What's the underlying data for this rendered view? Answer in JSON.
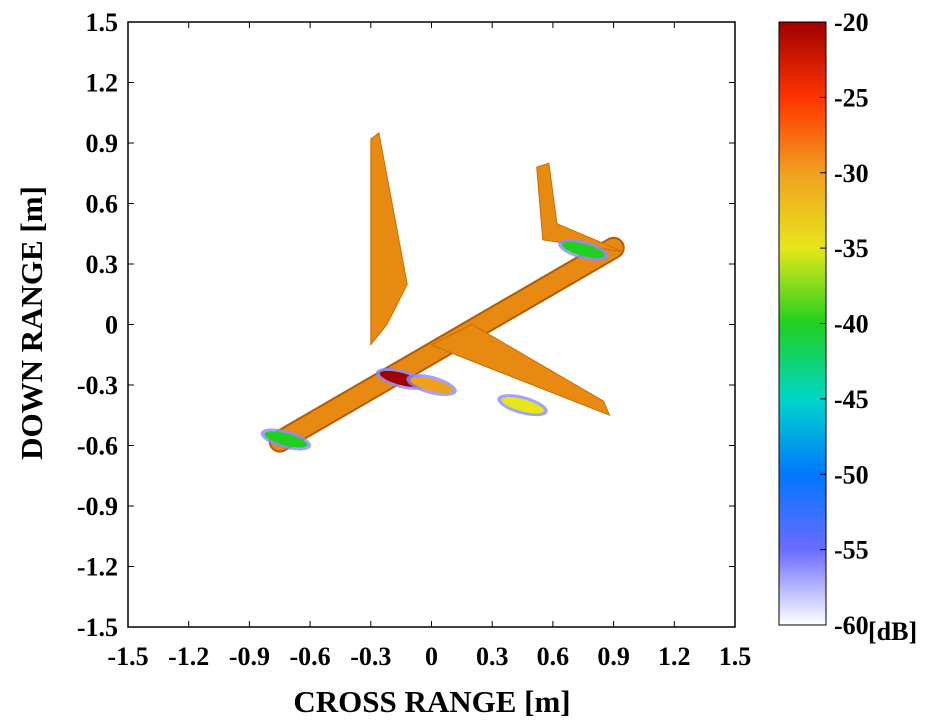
{
  "chart_data": {
    "type": "heatmap",
    "title": "",
    "xlabel": "CROSS RANGE [m]",
    "ylabel": "DOWN RANGE [m]",
    "xlim": [
      -1.5,
      1.5
    ],
    "ylim": [
      -1.5,
      1.5
    ],
    "xticks": [
      "-1.5",
      "-1.2",
      "-0.9",
      "-0.6",
      "-0.3",
      "0",
      "0.3",
      "0.6",
      "0.9",
      "1.2",
      "1.5"
    ],
    "yticks": [
      "1.5",
      "1.2",
      "0.9",
      "0.6",
      "0.3",
      "0",
      "-0.3",
      "-0.6",
      "-0.9",
      "-1.2",
      "-1.5"
    ],
    "grid": false,
    "colorbar": {
      "unit": "[dB]",
      "range": [
        -60,
        -20
      ],
      "ticks": [
        "-20",
        "-25",
        "-30",
        "-35",
        "-40",
        "-45",
        "-50",
        "-55",
        "-60"
      ],
      "colormap": [
        "#ffffff",
        "#6b6bff",
        "#0077ff",
        "#00d6c8",
        "#20d020",
        "#e6e61a",
        "#f0a020",
        "#ff3300",
        "#a00000"
      ]
    },
    "body_color": "#e88a12",
    "features": [
      {
        "kind": "fuselage",
        "from": [
          -0.75,
          -0.58
        ],
        "to": [
          0.9,
          0.38
        ],
        "width": 0.09
      },
      {
        "kind": "wing",
        "points": [
          [
            -0.3,
            0.92
          ],
          [
            -0.26,
            0.95
          ],
          [
            -0.12,
            0.2
          ],
          [
            -0.22,
            0.0
          ],
          [
            -0.3,
            -0.1
          ]
        ]
      },
      {
        "kind": "wing",
        "points": [
          [
            0.0,
            -0.1
          ],
          [
            0.12,
            -0.15
          ],
          [
            0.88,
            -0.45
          ],
          [
            0.85,
            -0.38
          ],
          [
            0.2,
            0.0
          ]
        ]
      },
      {
        "kind": "tail",
        "points": [
          [
            0.52,
            0.78
          ],
          [
            0.58,
            0.8
          ],
          [
            0.62,
            0.5
          ],
          [
            0.95,
            0.36
          ],
          [
            0.55,
            0.42
          ]
        ]
      },
      {
        "kind": "hotspot",
        "x": -0.15,
        "y": -0.27,
        "level": -22
      },
      {
        "kind": "hotspot",
        "x": 0.0,
        "y": -0.3,
        "level": -28
      },
      {
        "kind": "hotspot",
        "x": 0.45,
        "y": -0.4,
        "level": -35
      },
      {
        "kind": "hotspot",
        "x": 0.75,
        "y": 0.37,
        "level": -40
      },
      {
        "kind": "hotspot",
        "x": -0.72,
        "y": -0.57,
        "level": -42
      }
    ]
  }
}
